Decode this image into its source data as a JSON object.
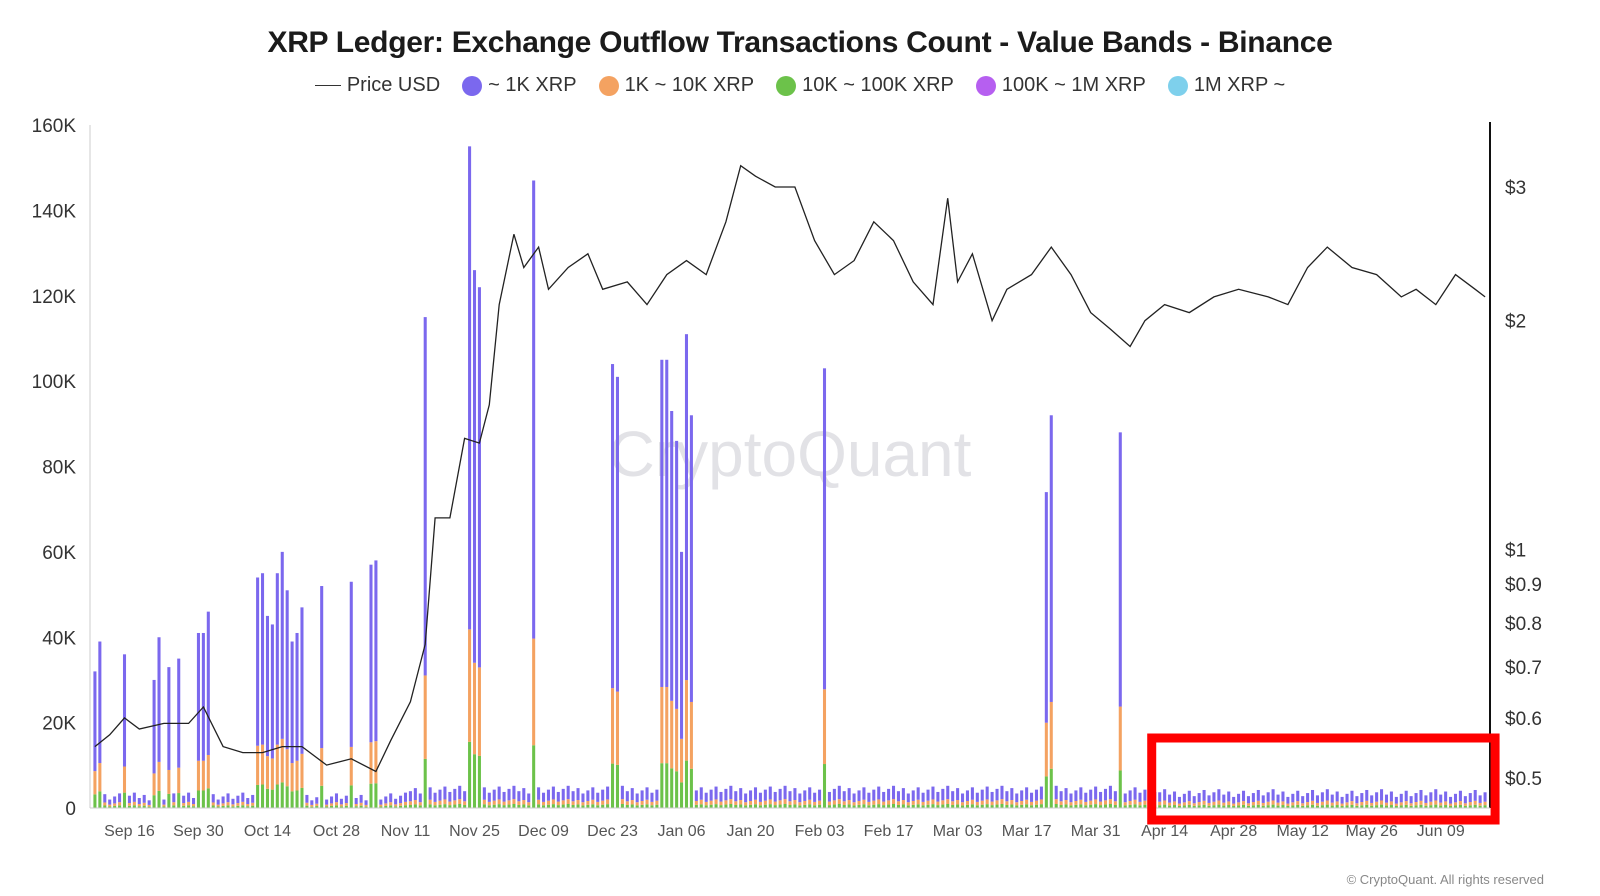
{
  "chart_data": {
    "type": "bar",
    "title": "XRP Ledger: Exchange Outflow Transactions Count - Value Bands - Binance",
    "watermark": "CryptoQuant",
    "copyright": "© CryptoQuant. All rights reserved",
    "legend_placement": "top",
    "legend": [
      {
        "label": "Price USD",
        "kind": "line",
        "color": "#333333"
      },
      {
        "label": "~ 1K XRP",
        "kind": "dot",
        "color": "#7b68ee"
      },
      {
        "label": "1K ~ 10K XRP",
        "kind": "dot",
        "color": "#f4a261"
      },
      {
        "label": "10K ~ 100K XRP",
        "kind": "dot",
        "color": "#6cc24a"
      },
      {
        "label": "100K ~ 1M XRP",
        "kind": "dot",
        "color": "#b65ff0"
      },
      {
        "label": "1M XRP ~",
        "kind": "dot",
        "color": "#7ed0ec"
      }
    ],
    "y_left": {
      "min": 0,
      "max": 160000,
      "ticks": [
        0,
        20000,
        40000,
        60000,
        80000,
        100000,
        120000,
        140000,
        160000
      ],
      "tick_labels": [
        "0",
        "20K",
        "40K",
        "60K",
        "80K",
        "100K",
        "120K",
        "140K",
        "160K"
      ]
    },
    "y_right": {
      "scale": "log",
      "ticks": [
        0.5,
        0.6,
        0.7,
        0.8,
        0.9,
        1,
        2,
        3
      ],
      "tick_labels": [
        "$0.5",
        "$0.6",
        "$0.7",
        "$0.8",
        "$0.9",
        "$1",
        "$2",
        "$3"
      ]
    },
    "x_tick_labels": [
      "Sep 16",
      "Sep 30",
      "Oct 14",
      "Oct 28",
      "Nov 11",
      "Nov 25",
      "Dec 09",
      "Dec 23",
      "Jan 06",
      "Jan 20",
      "Feb 03",
      "Feb 17",
      "Mar 03",
      "Mar 17",
      "Mar 31",
      "Apr 14",
      "Apr 28",
      "May 12",
      "May 26",
      "Jun 09"
    ],
    "x_tick_days": [
      7,
      21,
      35,
      49,
      63,
      77,
      91,
      105,
      119,
      133,
      147,
      161,
      175,
      189,
      203,
      217,
      231,
      245,
      259,
      273
    ],
    "x_range_days": [
      -1,
      283
    ],
    "x_range_note": "day 0 = Sep 09",
    "highlight_box": {
      "from_day": 216,
      "to_day": 282,
      "color": "#ff0000"
    },
    "bars": [
      {
        "day": 0,
        "total": 32000
      },
      {
        "day": 1,
        "total": 39000
      },
      {
        "day": 6,
        "total": 36000
      },
      {
        "day": 12,
        "total": 30000
      },
      {
        "day": 13,
        "total": 40000
      },
      {
        "day": 15,
        "total": 33000
      },
      {
        "day": 17,
        "total": 35000
      },
      {
        "day": 21,
        "total": 41000
      },
      {
        "day": 22,
        "total": 41000
      },
      {
        "day": 23,
        "total": 46000
      },
      {
        "day": 33,
        "total": 54000
      },
      {
        "day": 34,
        "total": 55000
      },
      {
        "day": 35,
        "total": 45000
      },
      {
        "day": 36,
        "total": 43000
      },
      {
        "day": 37,
        "total": 55000
      },
      {
        "day": 38,
        "total": 60000
      },
      {
        "day": 39,
        "total": 51000
      },
      {
        "day": 40,
        "total": 39000
      },
      {
        "day": 41,
        "total": 41000
      },
      {
        "day": 42,
        "total": 47000
      },
      {
        "day": 46,
        "total": 52000
      },
      {
        "day": 52,
        "total": 53000
      },
      {
        "day": 56,
        "total": 57000
      },
      {
        "day": 57,
        "total": 58000
      },
      {
        "day": 67,
        "total": 115000
      },
      {
        "day": 76,
        "total": 155000
      },
      {
        "day": 77,
        "total": 126000
      },
      {
        "day": 78,
        "total": 122000
      },
      {
        "day": 89,
        "total": 147000
      },
      {
        "day": 105,
        "total": 104000
      },
      {
        "day": 106,
        "total": 101000
      },
      {
        "day": 115,
        "total": 105000
      },
      {
        "day": 116,
        "total": 105000
      },
      {
        "day": 117,
        "total": 93000
      },
      {
        "day": 118,
        "total": 86000
      },
      {
        "day": 119,
        "total": 60000
      },
      {
        "day": 120,
        "total": 111000
      },
      {
        "day": 121,
        "total": 92000
      },
      {
        "day": 148,
        "total": 103000
      },
      {
        "day": 193,
        "total": 74000
      },
      {
        "day": 194,
        "total": 92000
      },
      {
        "day": 208,
        "total": 88000
      }
    ],
    "price": [
      {
        "day": 0,
        "value": 0.55
      },
      {
        "day": 3,
        "value": 0.57
      },
      {
        "day": 6,
        "value": 0.6
      },
      {
        "day": 9,
        "value": 0.58
      },
      {
        "day": 14,
        "value": 0.59
      },
      {
        "day": 19,
        "value": 0.59
      },
      {
        "day": 22,
        "value": 0.62
      },
      {
        "day": 26,
        "value": 0.55
      },
      {
        "day": 30,
        "value": 0.54
      },
      {
        "day": 34,
        "value": 0.54
      },
      {
        "day": 38,
        "value": 0.55
      },
      {
        "day": 42,
        "value": 0.55
      },
      {
        "day": 47,
        "value": 0.52
      },
      {
        "day": 52,
        "value": 0.53
      },
      {
        "day": 57,
        "value": 0.51
      },
      {
        "day": 60,
        "value": 0.56
      },
      {
        "day": 64,
        "value": 0.63
      },
      {
        "day": 67,
        "value": 0.75
      },
      {
        "day": 69,
        "value": 1.1
      },
      {
        "day": 72,
        "value": 1.1
      },
      {
        "day": 75,
        "value": 1.4
      },
      {
        "day": 78,
        "value": 1.38
      },
      {
        "day": 80,
        "value": 1.55
      },
      {
        "day": 82,
        "value": 2.1
      },
      {
        "day": 85,
        "value": 2.6
      },
      {
        "day": 87,
        "value": 2.35
      },
      {
        "day": 90,
        "value": 2.5
      },
      {
        "day": 92,
        "value": 2.2
      },
      {
        "day": 96,
        "value": 2.35
      },
      {
        "day": 100,
        "value": 2.45
      },
      {
        "day": 103,
        "value": 2.2
      },
      {
        "day": 108,
        "value": 2.25
      },
      {
        "day": 112,
        "value": 2.1
      },
      {
        "day": 116,
        "value": 2.3
      },
      {
        "day": 120,
        "value": 2.4
      },
      {
        "day": 124,
        "value": 2.3
      },
      {
        "day": 128,
        "value": 2.7
      },
      {
        "day": 131,
        "value": 3.2
      },
      {
        "day": 134,
        "value": 3.1
      },
      {
        "day": 138,
        "value": 3.0
      },
      {
        "day": 142,
        "value": 3.0
      },
      {
        "day": 146,
        "value": 2.55
      },
      {
        "day": 150,
        "value": 2.3
      },
      {
        "day": 154,
        "value": 2.4
      },
      {
        "day": 158,
        "value": 2.7
      },
      {
        "day": 162,
        "value": 2.55
      },
      {
        "day": 166,
        "value": 2.25
      },
      {
        "day": 170,
        "value": 2.1
      },
      {
        "day": 173,
        "value": 2.9
      },
      {
        "day": 175,
        "value": 2.25
      },
      {
        "day": 178,
        "value": 2.45
      },
      {
        "day": 182,
        "value": 2.0
      },
      {
        "day": 185,
        "value": 2.2
      },
      {
        "day": 190,
        "value": 2.3
      },
      {
        "day": 194,
        "value": 2.5
      },
      {
        "day": 198,
        "value": 2.3
      },
      {
        "day": 202,
        "value": 2.05
      },
      {
        "day": 206,
        "value": 1.95
      },
      {
        "day": 210,
        "value": 1.85
      },
      {
        "day": 213,
        "value": 2.0
      },
      {
        "day": 217,
        "value": 2.1
      },
      {
        "day": 222,
        "value": 2.05
      },
      {
        "day": 227,
        "value": 2.15
      },
      {
        "day": 232,
        "value": 2.2
      },
      {
        "day": 238,
        "value": 2.15
      },
      {
        "day": 242,
        "value": 2.1
      },
      {
        "day": 246,
        "value": 2.35
      },
      {
        "day": 250,
        "value": 2.5
      },
      {
        "day": 255,
        "value": 2.35
      },
      {
        "day": 260,
        "value": 2.3
      },
      {
        "day": 265,
        "value": 2.15
      },
      {
        "day": 268,
        "value": 2.2
      },
      {
        "day": 272,
        "value": 2.1
      },
      {
        "day": 276,
        "value": 2.3
      },
      {
        "day": 280,
        "value": 2.2
      },
      {
        "day": 282,
        "value": 2.15
      }
    ]
  }
}
